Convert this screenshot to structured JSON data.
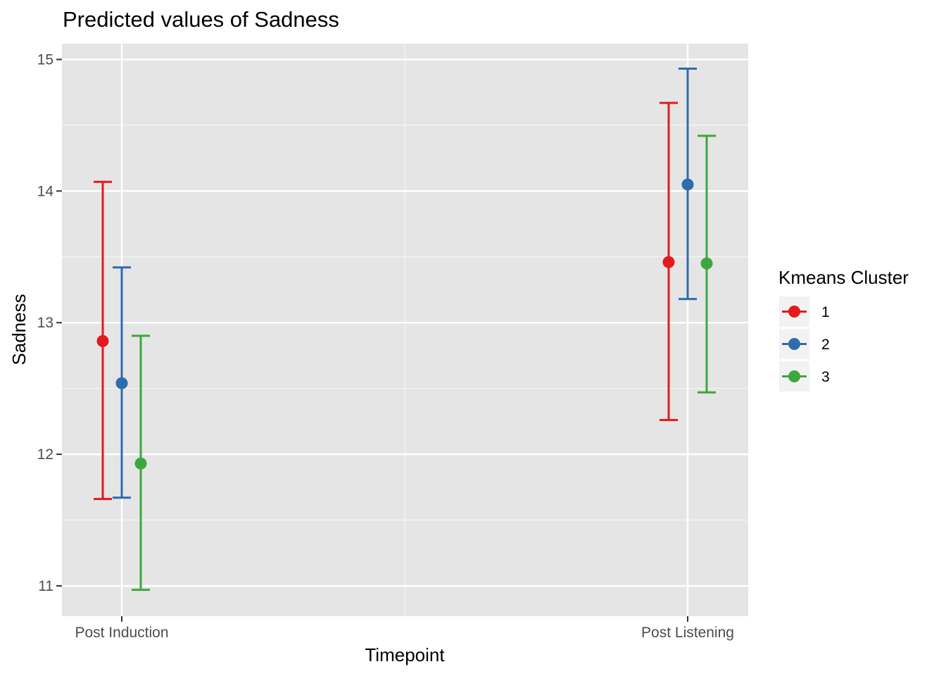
{
  "chart_data": {
    "type": "scatter",
    "title": "Predicted values of Sadness",
    "xlabel": "Timepoint",
    "ylabel": "Sadness",
    "categories": [
      "Post Induction",
      "Post Listening"
    ],
    "ylim": [
      10.77,
      15.12
    ],
    "yticks": [
      11,
      12,
      13,
      14,
      15
    ],
    "grid": true,
    "legend": {
      "title": "Kmeans Cluster",
      "position": "right"
    },
    "series": [
      {
        "name": "1",
        "color": "#e41a1c",
        "values": [
          12.86,
          13.46
        ],
        "lower": [
          11.66,
          12.26
        ],
        "upper": [
          14.07,
          14.67
        ]
      },
      {
        "name": "2",
        "color": "#2f6bad",
        "values": [
          12.54,
          14.05
        ],
        "lower": [
          11.67,
          13.18
        ],
        "upper": [
          13.42,
          14.93
        ]
      },
      {
        "name": "3",
        "color": "#3ea73b",
        "values": [
          11.93,
          13.45
        ],
        "lower": [
          10.97,
          12.47
        ],
        "upper": [
          12.9,
          14.42
        ]
      }
    ]
  }
}
